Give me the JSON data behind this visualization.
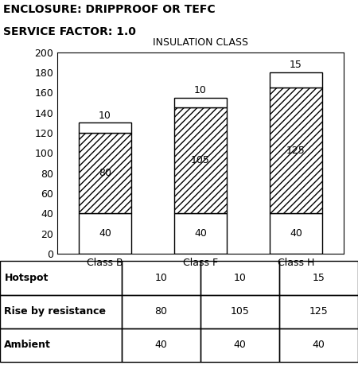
{
  "title_line1": "ENCLOSURE: DRIPPROOF OR TEFC",
  "title_line2": "SERVICE FACTOR: 1.0",
  "chart_title": "INSULATION CLASS",
  "categories": [
    "Class B",
    "Class F",
    "Class H"
  ],
  "ambient": [
    40,
    40,
    40
  ],
  "rise_by_resistance": [
    80,
    105,
    125
  ],
  "hotspot": [
    10,
    10,
    15
  ],
  "ambient_labels": [
    "40",
    "40",
    "40"
  ],
  "rise_labels": [
    "80",
    "105",
    "125"
  ],
  "hotspot_labels": [
    "10",
    "10",
    "15"
  ],
  "ylim": [
    0,
    200
  ],
  "yticks": [
    0,
    20,
    40,
    60,
    80,
    100,
    120,
    140,
    160,
    180,
    200
  ],
  "hatch_rise": "////",
  "table_rows": [
    "Hotspot",
    "Rise by resistance",
    "Ambient"
  ],
  "table_data": [
    [
      10,
      10,
      15
    ],
    [
      80,
      105,
      125
    ],
    [
      40,
      40,
      40
    ]
  ],
  "header_fontsize": 10,
  "chart_title_fontsize": 9,
  "tick_fontsize": 9,
  "bar_label_fontsize": 9,
  "table_fontsize": 9,
  "bar_width": 0.55
}
